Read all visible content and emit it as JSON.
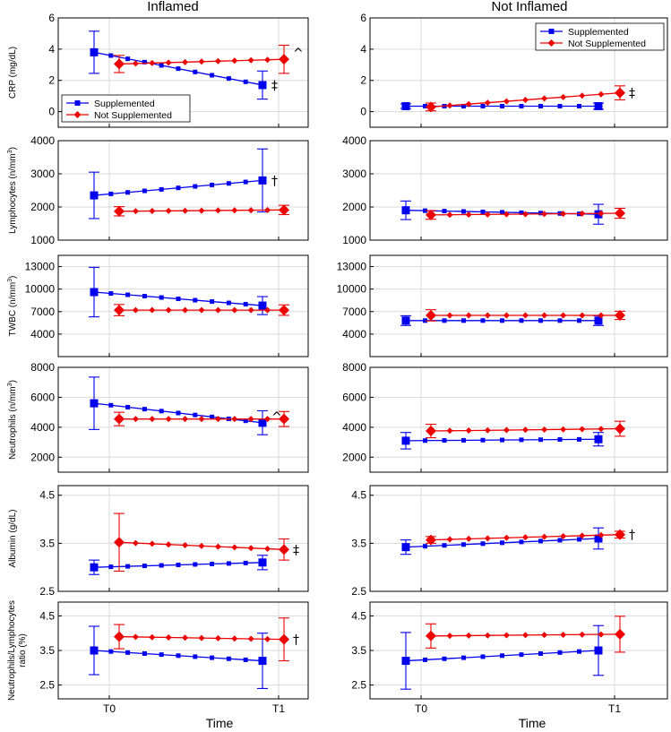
{
  "figure": {
    "column_titles": [
      "Inflamed",
      "Not Inflamed"
    ],
    "xlabel": "Time",
    "xticks": [
      "T0",
      "T1"
    ],
    "legend": [
      "Supplemented",
      "Not Supplemented"
    ],
    "colors": {
      "supplemented": "#0000ee",
      "not_supplemented": "#ee0000",
      "grid": "#d9d9d9"
    }
  },
  "chart_data": [
    {
      "type": "line",
      "row": 0,
      "column": "Inflamed",
      "ylabel": "CRP (mg/dL)",
      "ylabel_sup": "",
      "ylabel_after": "",
      "ylim": [
        -1,
        6
      ],
      "yticks": [
        "0",
        "2",
        "4",
        "6"
      ],
      "ytick_values": [
        0,
        2,
        4,
        6
      ],
      "legend_position": "bottom-left",
      "series": [
        {
          "name": "Supplemented",
          "start": 3.8,
          "end": 1.7,
          "err_start": 1.35,
          "err_end": 0.9
        },
        {
          "name": "Not Supplemented",
          "start": 3.05,
          "end": 3.35,
          "err_start": 0.55,
          "err_end": 0.9
        }
      ],
      "annotations": [
        {
          "text": "‡",
          "series": "Supplemented"
        },
        {
          "text": "^",
          "series": "Not Supplemented"
        }
      ]
    },
    {
      "type": "line",
      "row": 0,
      "column": "Not Inflamed",
      "ylabel": "",
      "ylabel_sup": "",
      "ylabel_after": "",
      "ylim": [
        -1,
        6
      ],
      "yticks": [
        "0",
        "2",
        "4",
        "6"
      ],
      "ytick_values": [
        0,
        2,
        4,
        6
      ],
      "legend_position": "top-right",
      "series": [
        {
          "name": "Supplemented",
          "start": 0.35,
          "end": 0.35,
          "err_start": 0.15,
          "err_end": 0.2
        },
        {
          "name": "Not Supplemented",
          "start": 0.3,
          "end": 1.2,
          "err_start": 0.25,
          "err_end": 0.45
        }
      ],
      "annotations": [
        {
          "text": "‡",
          "series": "Not Supplemented"
        }
      ]
    },
    {
      "type": "line",
      "row": 1,
      "column": "Inflamed",
      "ylabel": "Lymphocytes (n/mm",
      "ylabel_sup": "3",
      "ylabel_after": ")",
      "ylim": [
        1000,
        4000
      ],
      "yticks": [
        "1000",
        "2000",
        "3000",
        "4000"
      ],
      "ytick_values": [
        1000,
        2000,
        3000,
        4000
      ],
      "series": [
        {
          "name": "Supplemented",
          "start": 2350,
          "end": 2800,
          "err_start": 700,
          "err_end": 950
        },
        {
          "name": "Not Supplemented",
          "start": 1870,
          "end": 1910,
          "err_start": 140,
          "err_end": 140
        }
      ],
      "annotations": [
        {
          "text": "†",
          "series": "Supplemented"
        }
      ]
    },
    {
      "type": "line",
      "row": 1,
      "column": "Not Inflamed",
      "ylabel": "",
      "ylabel_sup": "",
      "ylabel_after": "",
      "ylim": [
        1000,
        4000
      ],
      "yticks": [
        "1000",
        "2000",
        "3000",
        "4000"
      ],
      "ytick_values": [
        1000,
        2000,
        3000,
        4000
      ],
      "series": [
        {
          "name": "Supplemented",
          "start": 1900,
          "end": 1780,
          "err_start": 280,
          "err_end": 300
        },
        {
          "name": "Not Supplemented",
          "start": 1760,
          "end": 1810,
          "err_start": 130,
          "err_end": 150
        }
      ],
      "annotations": []
    },
    {
      "type": "line",
      "row": 2,
      "column": "Inflamed",
      "ylabel": "TWBC (n/mm",
      "ylabel_sup": "3",
      "ylabel_after": ")",
      "ylim": [
        1000,
        14500
      ],
      "yticks": [
        "4000",
        "7000",
        "10000",
        "13000"
      ],
      "ytick_values": [
        4000,
        7000,
        10000,
        13000
      ],
      "series": [
        {
          "name": "Supplemented",
          "start": 9600,
          "end": 7800,
          "err_start": 3300,
          "err_end": 1200
        },
        {
          "name": "Not Supplemented",
          "start": 7200,
          "end": 7200,
          "err_start": 750,
          "err_end": 700
        }
      ],
      "annotations": []
    },
    {
      "type": "line",
      "row": 2,
      "column": "Not Inflamed",
      "ylabel": "",
      "ylabel_sup": "",
      "ylabel_after": "",
      "ylim": [
        1000,
        14500
      ],
      "yticks": [
        "4000",
        "7000",
        "10000",
        "13000"
      ],
      "ytick_values": [
        4000,
        7000,
        10000,
        13000
      ],
      "series": [
        {
          "name": "Supplemented",
          "start": 5800,
          "end": 5800,
          "err_start": 650,
          "err_end": 650
        },
        {
          "name": "Not Supplemented",
          "start": 6500,
          "end": 6500,
          "err_start": 750,
          "err_end": 550
        }
      ],
      "annotations": []
    },
    {
      "type": "line",
      "row": 3,
      "column": "Inflamed",
      "ylabel": "Neutrophils (n/mm",
      "ylabel_sup": "3",
      "ylabel_after": ")",
      "ylim": [
        1000,
        8000
      ],
      "yticks": [
        "2000",
        "4000",
        "6000",
        "8000"
      ],
      "ytick_values": [
        2000,
        4000,
        6000,
        8000
      ],
      "series": [
        {
          "name": "Supplemented",
          "start": 5600,
          "end": 4300,
          "err_start": 1750,
          "err_end": 800
        },
        {
          "name": "Not Supplemented",
          "start": 4550,
          "end": 4550,
          "err_start": 450,
          "err_end": 500
        }
      ],
      "annotations": [
        {
          "text": "^",
          "series": "Supplemented"
        }
      ]
    },
    {
      "type": "line",
      "row": 3,
      "column": "Not Inflamed",
      "ylabel": "",
      "ylabel_sup": "",
      "ylabel_after": "",
      "ylim": [
        1000,
        8000
      ],
      "yticks": [
        "2000",
        "4000",
        "6000",
        "8000"
      ],
      "ytick_values": [
        2000,
        4000,
        6000,
        8000
      ],
      "series": [
        {
          "name": "Supplemented",
          "start": 3100,
          "end": 3200,
          "err_start": 550,
          "err_end": 450
        },
        {
          "name": "Not Supplemented",
          "start": 3750,
          "end": 3900,
          "err_start": 450,
          "err_end": 500
        }
      ],
      "annotations": []
    },
    {
      "type": "line",
      "row": 4,
      "column": "Inflamed",
      "ylabel": "Albumin (g/dL)",
      "ylabel_sup": "",
      "ylabel_after": "",
      "ylim": [
        2.5,
        4.7
      ],
      "yticks": [
        "2.5",
        "3.5",
        "4.5"
      ],
      "ytick_values": [
        2.5,
        3.5,
        4.5
      ],
      "series": [
        {
          "name": "Supplemented",
          "start": 3.0,
          "end": 3.1,
          "err_start": 0.15,
          "err_end": 0.15
        },
        {
          "name": "Not Supplemented",
          "start": 3.52,
          "end": 3.37,
          "err_start": 0.6,
          "err_end": 0.22
        }
      ],
      "annotations": [
        {
          "text": "‡",
          "series": "Not Supplemented"
        }
      ]
    },
    {
      "type": "line",
      "row": 4,
      "column": "Not Inflamed",
      "ylabel": "",
      "ylabel_sup": "",
      "ylabel_after": "",
      "ylim": [
        2.5,
        4.7
      ],
      "yticks": [
        "2.5",
        "3.5",
        "4.5"
      ],
      "ytick_values": [
        2.5,
        3.5,
        4.5
      ],
      "series": [
        {
          "name": "Supplemented",
          "start": 3.42,
          "end": 3.6,
          "err_start": 0.15,
          "err_end": 0.22
        },
        {
          "name": "Not Supplemented",
          "start": 3.57,
          "end": 3.68,
          "err_start": 0.07,
          "err_end": 0.07
        }
      ],
      "annotations": [
        {
          "text": "†",
          "series": "Not Supplemented"
        }
      ]
    },
    {
      "type": "line",
      "row": 5,
      "column": "Inflamed",
      "ylabel": "Neutrophils/Lymphocytes",
      "ylabel2": "ratio (%)",
      "ylabel_sup": "",
      "ylabel_after": "",
      "ylim": [
        2.1,
        4.9
      ],
      "yticks": [
        "2.5",
        "3.5",
        "4.5"
      ],
      "ytick_values": [
        2.5,
        3.5,
        4.5
      ],
      "series": [
        {
          "name": "Supplemented",
          "start": 3.5,
          "end": 3.2,
          "err_start": 0.7,
          "err_end": 0.8
        },
        {
          "name": "Not Supplemented",
          "start": 3.9,
          "end": 3.82,
          "err_start": 0.35,
          "err_end": 0.62
        }
      ],
      "annotations": [
        {
          "text": "†",
          "series": "Not Supplemented"
        }
      ]
    },
    {
      "type": "line",
      "row": 5,
      "column": "Not Inflamed",
      "ylabel": "",
      "ylabel_sup": "",
      "ylabel_after": "",
      "ylim": [
        2.1,
        4.9
      ],
      "yticks": [
        "2.5",
        "3.5",
        "4.5"
      ],
      "ytick_values": [
        2.5,
        3.5,
        4.5
      ],
      "series": [
        {
          "name": "Supplemented",
          "start": 3.2,
          "end": 3.5,
          "err_start": 0.82,
          "err_end": 0.72
        },
        {
          "name": "Not Supplemented",
          "start": 3.92,
          "end": 3.97,
          "err_start": 0.35,
          "err_end": 0.52
        }
      ],
      "annotations": []
    }
  ]
}
